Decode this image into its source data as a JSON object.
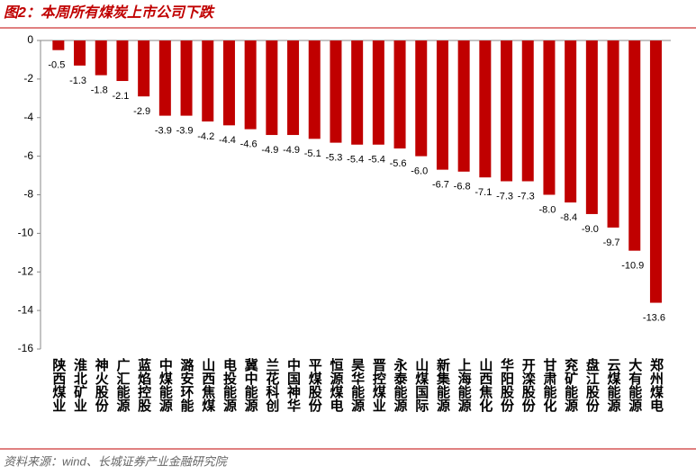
{
  "chart_data": {
    "type": "bar",
    "title": "图2：本周所有煤炭上市公司下跌",
    "source": "资料来源：wind、长城证券产业金融研究院",
    "categories": [
      "陕西煤业",
      "淮北矿业",
      "神火股份",
      "广汇能源",
      "蓝焰控股",
      "中煤能源",
      "潞安环能",
      "山西焦煤",
      "电投能源",
      "冀中能源",
      "兰花科创",
      "中国神华",
      "平煤股份",
      "恒源煤电",
      "昊华能源",
      "晋控煤业",
      "永泰能源",
      "山煤国际",
      "新集能源",
      "上海能源",
      "山西焦化",
      "华阳股份",
      "开滦股份",
      "甘肃能化",
      "兖矿能源",
      "盘江股份",
      "云煤能源",
      "大有能源",
      "郑州煤电"
    ],
    "values": [
      -0.5,
      -1.3,
      -1.8,
      -2.1,
      -2.9,
      -3.9,
      -3.9,
      -4.2,
      -4.4,
      -4.6,
      -4.9,
      -4.9,
      -5.1,
      -5.3,
      -5.4,
      -5.4,
      -5.6,
      -6.0,
      -6.7,
      -6.8,
      -7.1,
      -7.3,
      -7.3,
      -8.0,
      -8.4,
      -9.0,
      -9.7,
      -10.9,
      -13.6
    ],
    "value_labels": [
      "-0.5",
      "-1.3",
      "-1.8",
      "-2.1",
      "-2.9",
      "-3.9",
      "-3.9",
      "-4.2",
      "-4.4",
      "-4.6",
      "-4.9",
      "-4.9",
      "-5.1",
      "-5.3",
      "-5.4",
      "-5.4",
      "-5.6",
      "-6.0",
      "-6.7",
      "-6.8",
      "-7.1",
      "-7.3",
      "-7.3",
      "-8.0",
      "-8.4",
      "-9.0",
      "-9.7",
      "-10.9",
      "-13.6"
    ],
    "color": "#c00000",
    "ylim": [
      -16,
      0
    ],
    "yticks": [
      0,
      -2,
      -4,
      -6,
      -8,
      -10,
      -12,
      -14,
      -16
    ]
  }
}
